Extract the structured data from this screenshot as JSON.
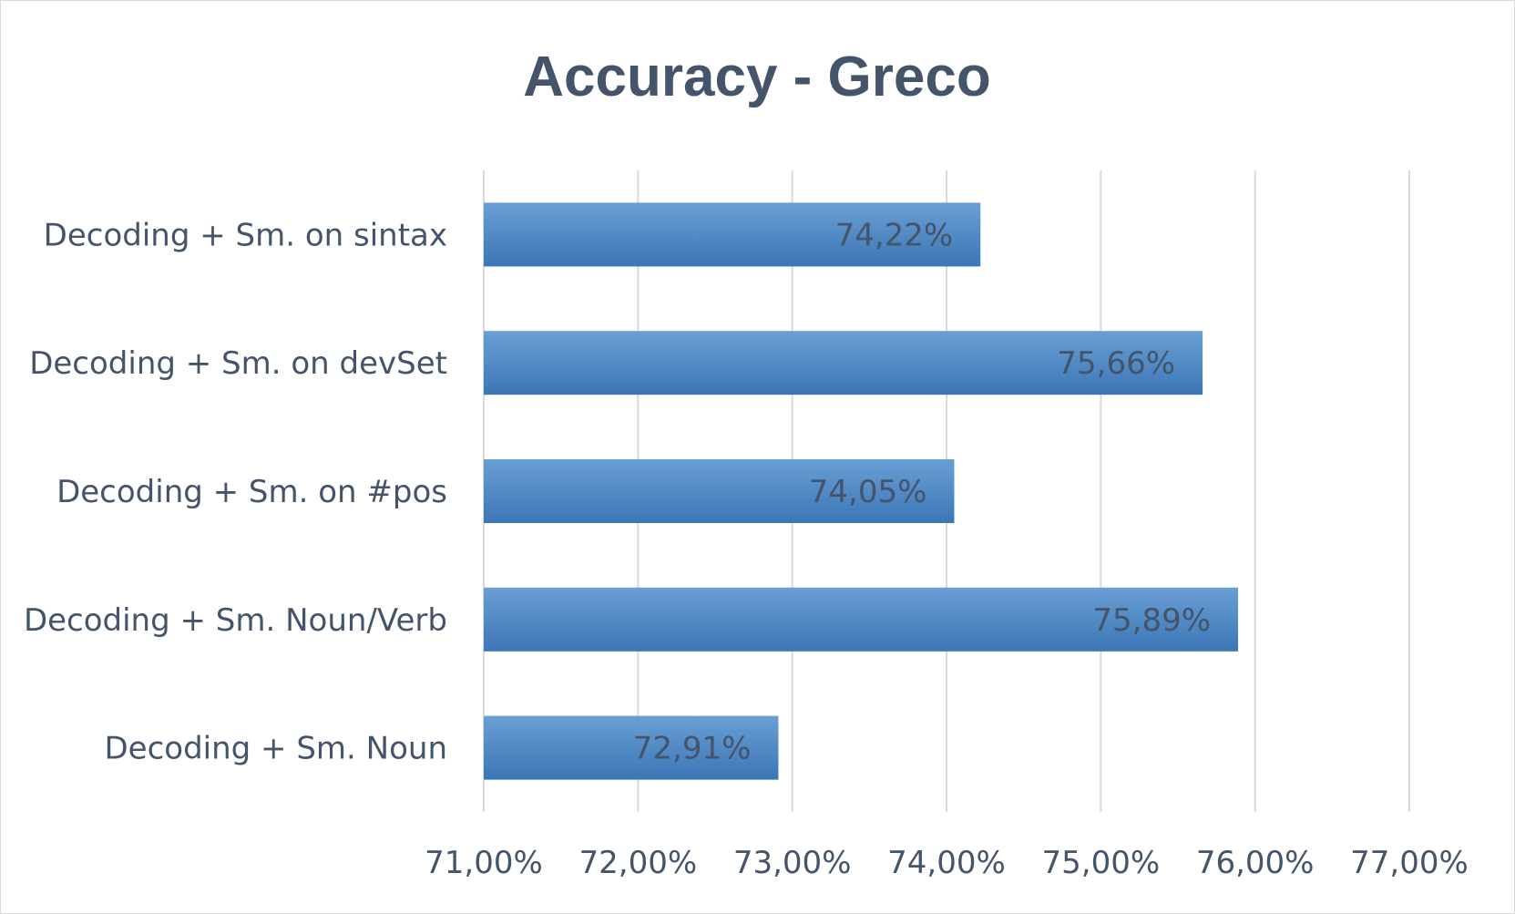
{
  "chart_data": {
    "type": "bar",
    "orientation": "horizontal",
    "title": "Accuracy - Greco",
    "categories": [
      "Decoding + Sm. on sintax",
      "Decoding + Sm. on devSet",
      "Decoding + Sm. on #pos",
      "Decoding + Sm. Noun/Verb",
      "Decoding + Sm. Noun"
    ],
    "values": [
      74.22,
      75.66,
      74.05,
      75.89,
      72.91
    ],
    "value_labels": [
      "74,22%",
      "75,66%",
      "74,05%",
      "75,89%",
      "72,91%"
    ],
    "xlim": [
      71,
      77
    ],
    "xticks": [
      71,
      72,
      73,
      74,
      75,
      76,
      77
    ],
    "xtick_labels": [
      "71,00%",
      "72,00%",
      "73,00%",
      "74,00%",
      "75,00%",
      "76,00%",
      "77,00%"
    ],
    "xlabel": "",
    "ylabel": "",
    "grid": true,
    "legend": "none",
    "bar_color": "#4a86c5"
  }
}
